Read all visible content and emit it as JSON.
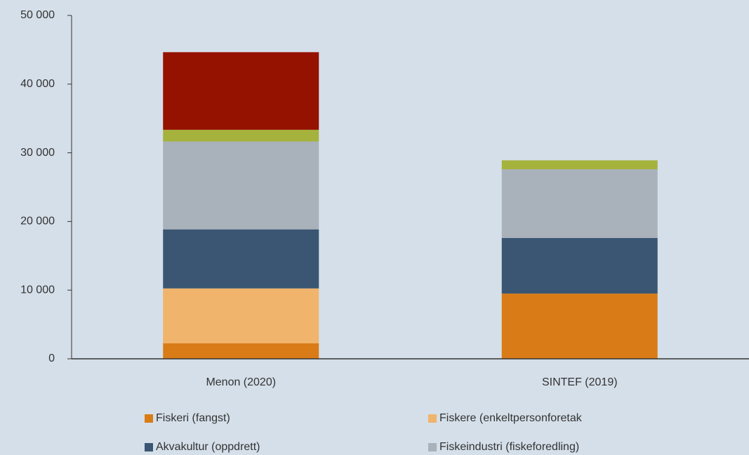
{
  "chart_data": {
    "type": "stacked_bar",
    "categories": [
      "Menon (2020)",
      "SINTEF (2019)"
    ],
    "series": [
      {
        "name": "Fiskeri (fangst)",
        "color": "#d97c17",
        "values": [
          2250,
          9500
        ]
      },
      {
        "name": "Fiskere (enkeltpersonforetak",
        "color": "#f0b46c",
        "values": [
          8000,
          0
        ]
      },
      {
        "name": "Akvakultur (oppdrett)",
        "color": "#3a5673",
        "values": [
          8600,
          8100
        ]
      },
      {
        "name": "Fiskeindustri (fiskeforedling)",
        "color": "#a9b1ba",
        "values": [
          12800,
          10000
        ]
      },
      {
        "color": "#a5b23c",
        "values": [
          1700,
          1300
        ]
      },
      {
        "color": "#951100",
        "values": [
          11300,
          0
        ]
      }
    ],
    "ylim": [
      0,
      50000
    ],
    "yticks": [
      0,
      {
        "value": 10000,
        "label": "10 000"
      },
      {
        "value": 20000,
        "label": "20 000"
      },
      {
        "value": 30000,
        "label": "30 000"
      },
      {
        "value": 40000,
        "label": "40 000"
      },
      {
        "value": 50000,
        "label": "50 000"
      }
    ],
    "legend": "bottom"
  }
}
